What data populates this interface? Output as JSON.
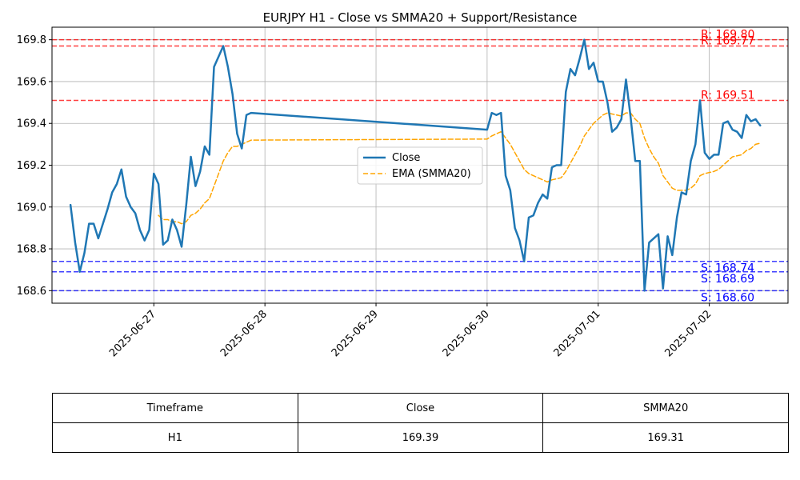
{
  "chart_data": {
    "type": "line",
    "title": "EURJPY H1 - Close vs SMMA20 + Support/Resistance",
    "xlabel": "",
    "ylabel": "",
    "x_ticks": [
      "2025-06-27",
      "2025-06-28",
      "2025-06-29",
      "2025-06-30",
      "2025-07-01",
      "2025-07-02"
    ],
    "y_ticks": [
      168.6,
      168.8,
      169.0,
      169.2,
      169.4,
      169.6,
      169.8
    ],
    "xlim": [
      "2025-06-26T02:00",
      "2025-07-02T17:00"
    ],
    "ylim": [
      168.54,
      169.86
    ],
    "grid": true,
    "legend_position": "center",
    "colors": {
      "close": "#1f77b4",
      "ema": "#ffa500",
      "resistance": "#ff0000",
      "support": "#0000ff"
    },
    "series": [
      {
        "name": "Close",
        "style": "solid",
        "points": [
          [
            "2025-06-26T06:00",
            169.01
          ],
          [
            "2025-06-26T07:00",
            168.83
          ],
          [
            "2025-06-26T08:00",
            168.69
          ],
          [
            "2025-06-26T09:00",
            168.78
          ],
          [
            "2025-06-26T10:00",
            168.92
          ],
          [
            "2025-06-26T11:00",
            168.92
          ],
          [
            "2025-06-26T12:00",
            168.85
          ],
          [
            "2025-06-26T13:00",
            168.92
          ],
          [
            "2025-06-26T14:00",
            168.99
          ],
          [
            "2025-06-26T15:00",
            169.07
          ],
          [
            "2025-06-26T16:00",
            169.11
          ],
          [
            "2025-06-26T17:00",
            169.18
          ],
          [
            "2025-06-26T18:00",
            169.05
          ],
          [
            "2025-06-26T19:00",
            169.0
          ],
          [
            "2025-06-26T20:00",
            168.97
          ],
          [
            "2025-06-26T21:00",
            168.89
          ],
          [
            "2025-06-26T22:00",
            168.84
          ],
          [
            "2025-06-26T23:00",
            168.89
          ],
          [
            "2025-06-27T00:00",
            169.16
          ],
          [
            "2025-06-27T01:00",
            169.11
          ],
          [
            "2025-06-27T02:00",
            168.82
          ],
          [
            "2025-06-27T03:00",
            168.84
          ],
          [
            "2025-06-27T04:00",
            168.94
          ],
          [
            "2025-06-27T05:00",
            168.89
          ],
          [
            "2025-06-27T06:00",
            168.81
          ],
          [
            "2025-06-27T07:00",
            169.01
          ],
          [
            "2025-06-27T08:00",
            169.24
          ],
          [
            "2025-06-27T09:00",
            169.1
          ],
          [
            "2025-06-27T10:00",
            169.17
          ],
          [
            "2025-06-27T11:00",
            169.29
          ],
          [
            "2025-06-27T12:00",
            169.25
          ],
          [
            "2025-06-27T13:00",
            169.67
          ],
          [
            "2025-06-27T14:00",
            169.72
          ],
          [
            "2025-06-27T15:00",
            169.77
          ],
          [
            "2025-06-27T16:00",
            169.67
          ],
          [
            "2025-06-27T17:00",
            169.54
          ],
          [
            "2025-06-27T18:00",
            169.35
          ],
          [
            "2025-06-27T19:00",
            169.28
          ],
          [
            "2025-06-27T20:00",
            169.44
          ],
          [
            "2025-06-27T21:00",
            169.45
          ],
          [
            "2025-06-30T00:00",
            169.37
          ],
          [
            "2025-06-30T01:00",
            169.45
          ],
          [
            "2025-06-30T02:00",
            169.44
          ],
          [
            "2025-06-30T03:00",
            169.45
          ],
          [
            "2025-06-30T04:00",
            169.15
          ],
          [
            "2025-06-30T05:00",
            169.08
          ],
          [
            "2025-06-30T06:00",
            168.9
          ],
          [
            "2025-06-30T07:00",
            168.84
          ],
          [
            "2025-06-30T08:00",
            168.74
          ],
          [
            "2025-06-30T09:00",
            168.95
          ],
          [
            "2025-06-30T10:00",
            168.96
          ],
          [
            "2025-06-30T11:00",
            169.02
          ],
          [
            "2025-06-30T12:00",
            169.06
          ],
          [
            "2025-06-30T13:00",
            169.04
          ],
          [
            "2025-06-30T14:00",
            169.19
          ],
          [
            "2025-06-30T15:00",
            169.2
          ],
          [
            "2025-06-30T16:00",
            169.2
          ],
          [
            "2025-06-30T17:00",
            169.55
          ],
          [
            "2025-06-30T18:00",
            169.66
          ],
          [
            "2025-06-30T19:00",
            169.63
          ],
          [
            "2025-06-30T20:00",
            169.71
          ],
          [
            "2025-06-30T21:00",
            169.8
          ],
          [
            "2025-06-30T22:00",
            169.66
          ],
          [
            "2025-06-30T23:00",
            169.69
          ],
          [
            "2025-07-01T00:00",
            169.6
          ],
          [
            "2025-07-01T01:00",
            169.6
          ],
          [
            "2025-07-01T02:00",
            169.5
          ],
          [
            "2025-07-01T03:00",
            169.36
          ],
          [
            "2025-07-01T04:00",
            169.38
          ],
          [
            "2025-07-01T05:00",
            169.42
          ],
          [
            "2025-07-01T06:00",
            169.61
          ],
          [
            "2025-07-01T07:00",
            169.43
          ],
          [
            "2025-07-01T08:00",
            169.22
          ],
          [
            "2025-07-01T09:00",
            169.22
          ],
          [
            "2025-07-01T10:00",
            168.6
          ],
          [
            "2025-07-01T11:00",
            168.83
          ],
          [
            "2025-07-01T12:00",
            168.85
          ],
          [
            "2025-07-01T13:00",
            168.87
          ],
          [
            "2025-07-01T14:00",
            168.61
          ],
          [
            "2025-07-01T15:00",
            168.86
          ],
          [
            "2025-07-01T16:00",
            168.77
          ],
          [
            "2025-07-01T17:00",
            168.95
          ],
          [
            "2025-07-01T18:00",
            169.07
          ],
          [
            "2025-07-01T19:00",
            169.06
          ],
          [
            "2025-07-01T20:00",
            169.22
          ],
          [
            "2025-07-01T21:00",
            169.3
          ],
          [
            "2025-07-01T22:00",
            169.51
          ],
          [
            "2025-07-01T23:00",
            169.26
          ],
          [
            "2025-07-02T00:00",
            169.23
          ],
          [
            "2025-07-02T01:00",
            169.25
          ],
          [
            "2025-07-02T02:00",
            169.25
          ],
          [
            "2025-07-02T03:00",
            169.4
          ],
          [
            "2025-07-02T04:00",
            169.41
          ],
          [
            "2025-07-02T05:00",
            169.37
          ],
          [
            "2025-07-02T06:00",
            169.36
          ],
          [
            "2025-07-02T07:00",
            169.33
          ],
          [
            "2025-07-02T08:00",
            169.44
          ],
          [
            "2025-07-02T09:00",
            169.41
          ],
          [
            "2025-07-02T10:00",
            169.42
          ],
          [
            "2025-07-02T11:00",
            169.39
          ]
        ]
      },
      {
        "name": "EMA (SMMA20)",
        "style": "dashed",
        "points": [
          [
            "2025-06-27T01:00",
            168.96
          ],
          [
            "2025-06-27T02:00",
            168.94
          ],
          [
            "2025-06-27T03:00",
            168.94
          ],
          [
            "2025-06-27T04:00",
            168.93
          ],
          [
            "2025-06-27T05:00",
            168.93
          ],
          [
            "2025-06-27T06:00",
            168.92
          ],
          [
            "2025-06-27T07:00",
            168.93
          ],
          [
            "2025-06-27T08:00",
            168.96
          ],
          [
            "2025-06-27T09:00",
            168.97
          ],
          [
            "2025-06-27T10:00",
            168.99
          ],
          [
            "2025-06-27T11:00",
            169.02
          ],
          [
            "2025-06-27T12:00",
            169.04
          ],
          [
            "2025-06-27T13:00",
            169.1
          ],
          [
            "2025-06-27T14:00",
            169.16
          ],
          [
            "2025-06-27T15:00",
            169.22
          ],
          [
            "2025-06-27T16:00",
            169.26
          ],
          [
            "2025-06-27T17:00",
            169.29
          ],
          [
            "2025-06-27T18:00",
            169.29
          ],
          [
            "2025-06-27T19:00",
            169.3
          ],
          [
            "2025-06-27T20:00",
            169.31
          ],
          [
            "2025-06-27T21:00",
            169.32
          ],
          [
            "2025-06-30T00:00",
            169.325
          ],
          [
            "2025-06-30T01:00",
            169.34
          ],
          [
            "2025-06-30T02:00",
            169.35
          ],
          [
            "2025-06-30T03:00",
            169.36
          ],
          [
            "2025-06-30T04:00",
            169.33
          ],
          [
            "2025-06-30T05:00",
            169.3
          ],
          [
            "2025-06-30T06:00",
            169.26
          ],
          [
            "2025-06-30T07:00",
            169.22
          ],
          [
            "2025-06-30T08:00",
            169.18
          ],
          [
            "2025-06-30T09:00",
            169.16
          ],
          [
            "2025-06-30T10:00",
            169.15
          ],
          [
            "2025-06-30T11:00",
            169.14
          ],
          [
            "2025-06-30T12:00",
            169.13
          ],
          [
            "2025-06-30T13:00",
            169.12
          ],
          [
            "2025-06-30T14:00",
            169.13
          ],
          [
            "2025-06-30T15:00",
            169.135
          ],
          [
            "2025-06-30T16:00",
            169.14
          ],
          [
            "2025-06-30T17:00",
            169.17
          ],
          [
            "2025-06-30T18:00",
            169.21
          ],
          [
            "2025-06-30T19:00",
            169.25
          ],
          [
            "2025-06-30T20:00",
            169.29
          ],
          [
            "2025-06-30T21:00",
            169.34
          ],
          [
            "2025-06-30T22:00",
            169.37
          ],
          [
            "2025-06-30T23:00",
            169.4
          ],
          [
            "2025-07-01T00:00",
            169.42
          ],
          [
            "2025-07-01T01:00",
            169.44
          ],
          [
            "2025-07-01T02:00",
            169.45
          ],
          [
            "2025-07-01T03:00",
            169.445
          ],
          [
            "2025-07-01T04:00",
            169.44
          ],
          [
            "2025-07-01T05:00",
            169.435
          ],
          [
            "2025-07-01T06:00",
            169.45
          ],
          [
            "2025-07-01T07:00",
            169.45
          ],
          [
            "2025-07-01T08:00",
            169.42
          ],
          [
            "2025-07-01T09:00",
            169.4
          ],
          [
            "2025-07-01T10:00",
            169.33
          ],
          [
            "2025-07-01T11:00",
            169.28
          ],
          [
            "2025-07-01T12:00",
            169.24
          ],
          [
            "2025-07-01T13:00",
            169.21
          ],
          [
            "2025-07-01T14:00",
            169.15
          ],
          [
            "2025-07-01T15:00",
            169.12
          ],
          [
            "2025-07-01T16:00",
            169.09
          ],
          [
            "2025-07-01T17:00",
            169.08
          ],
          [
            "2025-07-01T18:00",
            169.08
          ],
          [
            "2025-07-01T19:00",
            169.08
          ],
          [
            "2025-07-01T20:00",
            169.09
          ],
          [
            "2025-07-01T21:00",
            169.11
          ],
          [
            "2025-07-01T22:00",
            169.15
          ],
          [
            "2025-07-01T23:00",
            169.16
          ],
          [
            "2025-07-02T00:00",
            169.165
          ],
          [
            "2025-07-02T01:00",
            169.17
          ],
          [
            "2025-07-02T02:00",
            169.18
          ],
          [
            "2025-07-02T03:00",
            169.2
          ],
          [
            "2025-07-02T04:00",
            169.22
          ],
          [
            "2025-07-02T05:00",
            169.24
          ],
          [
            "2025-07-02T06:00",
            169.245
          ],
          [
            "2025-07-02T07:00",
            169.25
          ],
          [
            "2025-07-02T08:00",
            169.27
          ],
          [
            "2025-07-02T09:00",
            169.28
          ],
          [
            "2025-07-02T10:00",
            169.3
          ],
          [
            "2025-07-02T11:00",
            169.305
          ]
        ]
      }
    ],
    "levels": [
      {
        "kind": "resistance",
        "value": 169.8,
        "label": "R: 169.80"
      },
      {
        "kind": "resistance",
        "value": 169.77,
        "label": "R: 169.77"
      },
      {
        "kind": "resistance",
        "value": 169.51,
        "label": "R: 169.51"
      },
      {
        "kind": "support",
        "value": 168.74,
        "label": "S: 168.74"
      },
      {
        "kind": "support",
        "value": 168.69,
        "label": "S: 168.69"
      },
      {
        "kind": "support",
        "value": 168.6,
        "label": "S: 168.60"
      }
    ]
  },
  "table": {
    "headers": [
      "Timeframe",
      "Close",
      "SMMA20"
    ],
    "rows": [
      [
        "H1",
        "169.39",
        "169.31"
      ]
    ]
  }
}
